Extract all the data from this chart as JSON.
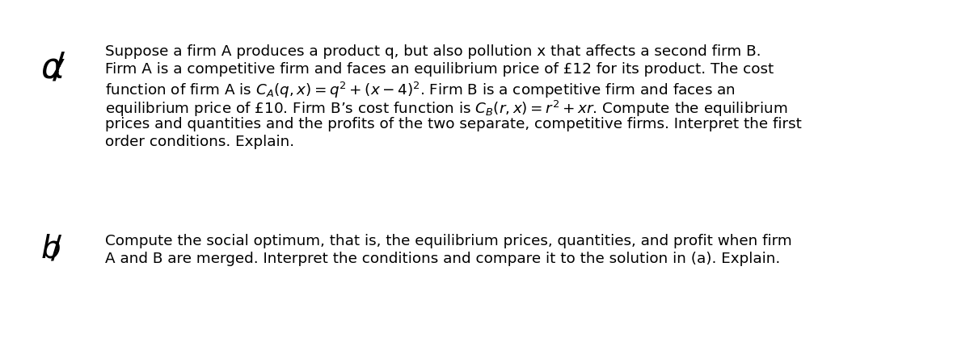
{
  "background_color": "#ffffff",
  "fig_width": 12.0,
  "fig_height": 4.35,
  "dpi": 100,
  "text_font_size": 13.2,
  "label_font_size": 28,
  "text_color": "#000000",
  "lines_a": [
    "Suppose a firm A produces a product q, but also pollution x that affects a second firm B.",
    "Firm A is a competitive firm and faces an equilibrium price of £12 for its product. The cost",
    "function of firm A is $C_A(q, x) = q^2 + (x - 4)^2$. Firm B is a competitive firm and faces an",
    "equilibrium price of £10. Firm B’s cost function is $C_B(r, x) = r^2 + xr$. Compute the equilibrium",
    "prices and quantities and the profits of the two separate, competitive firms. Interpret the first",
    "order conditions. Explain."
  ],
  "lines_b": [
    "Compute the social optimum, that is, the equilibrium prices, quantities, and profit when firm",
    "A and B are merged. Interpret the conditions and compare it to the solution in (a). Explain."
  ]
}
